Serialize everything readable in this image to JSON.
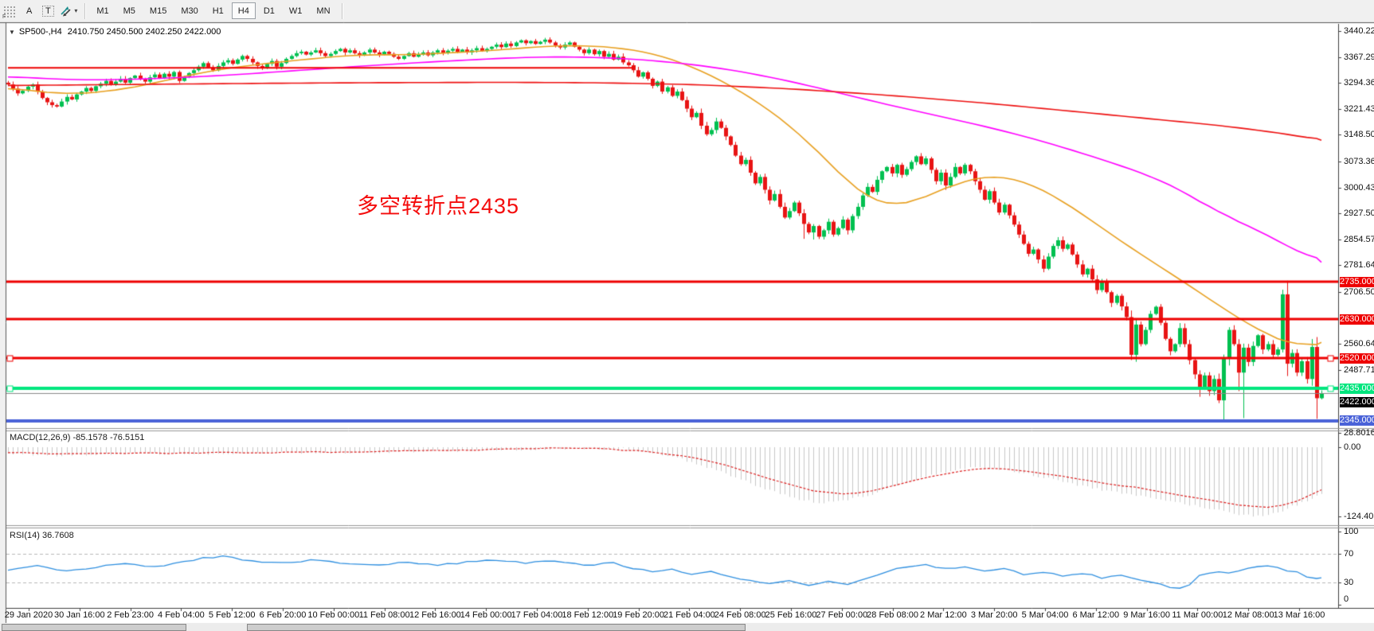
{
  "toolbar": {
    "handle_letter": "F",
    "font_tool_label": "A",
    "text_tool_label": "T",
    "dropdown_caret": "▾",
    "timeframes": [
      "M1",
      "M5",
      "M15",
      "M30",
      "H1",
      "H4",
      "D1",
      "W1",
      "MN"
    ],
    "active_timeframe": "H4"
  },
  "chart": {
    "collapse_arrow": "▼",
    "title_symbol": "SP500-,H4",
    "title_ohlc": "2410.750 2450.500 2402.250 2422.000",
    "annotation_text": "多空转折点2435",
    "annotation_color": "#f40b0b"
  },
  "macd": {
    "title": "MACD(12,26,9) -85.1578 -76.5151",
    "axis_labels": [
      {
        "text": "28.8016",
        "value": 28.8016
      },
      {
        "text": "0.00",
        "value": 0
      },
      {
        "text": "-124.4011",
        "value": -124.4011
      }
    ]
  },
  "rsi": {
    "title": "RSI(14) 36.7608",
    "axis_labels": [
      {
        "text": "100",
        "value": 100
      },
      {
        "text": "70",
        "value": 70
      },
      {
        "text": "30",
        "value": 30
      },
      {
        "text": "0",
        "value": 0
      }
    ]
  },
  "price_axis": {
    "ticks": [
      "3440.220",
      "3367.290",
      "3294.360",
      "3221.430",
      "3148.500",
      "3073.360",
      "3000.430",
      "2927.500",
      "2854.570",
      "2781.640",
      "2706.500",
      "2560.640",
      "2487.710"
    ],
    "line_labels": [
      {
        "text": "2735.000",
        "price": 2735,
        "bg": "#ee0000",
        "z": 5
      },
      {
        "text": "2630.000",
        "price": 2630,
        "bg": "#ee0000",
        "z": 5
      },
      {
        "text": "2520.000",
        "price": 2520,
        "bg": "#ee0000",
        "z": 5
      },
      {
        "text": "2435.000",
        "price": 2435,
        "bg": "#00e67e",
        "z": 7
      },
      {
        "text": "2422.000",
        "price": 2422,
        "bg": "#000000",
        "z": 6,
        "shift": 11
      },
      {
        "text": "2345.000",
        "price": 2345,
        "bg": "#4a62d8",
        "z": 5
      }
    ]
  },
  "time_axis": {
    "labels": [
      "29 Jan 2020",
      "30 Jan 16:00",
      "2 Feb 23:00",
      "4 Feb 04:00",
      "5 Feb 12:00",
      "6 Feb 20:00",
      "10 Feb 00:00",
      "11 Feb 08:00",
      "12 Feb 16:00",
      "14 Feb 00:00",
      "17 Feb 04:00",
      "18 Feb 12:00",
      "19 Feb 20:00",
      "21 Feb 04:00",
      "24 Feb 08:00",
      "25 Feb 16:00",
      "27 Feb 00:00",
      "28 Feb 08:00",
      "2 Mar 12:00",
      "3 Mar 20:00",
      "5 Mar 04:00",
      "6 Mar 12:00",
      "9 Mar 16:00",
      "11 Mar 00:00",
      "12 Mar 08:00",
      "13 Mar 16:00"
    ]
  },
  "chart_data": {
    "type": "candlestick",
    "symbol": "SP500-",
    "timeframe": "H4",
    "last_bar_ohlc": {
      "open": 2410.75,
      "high": 2450.5,
      "low": 2402.25,
      "close": 2422.0
    },
    "current_price": 2422.0,
    "price_axis_range": [
      2326,
      3460
    ],
    "colors": {
      "candle_up": "#00c050",
      "candle_down": "#e81414",
      "ma_short": "#e8a020",
      "ma_medium": "#ff00ff",
      "ma_long": "#ee1111",
      "macd_histogram": "#c8c8c8",
      "macd_signal": "#dd2020",
      "rsi_line": "#2e8fe0",
      "level_red": "#ee0000",
      "level_green": "#00e67e",
      "level_blue": "#4a62d8",
      "current_price_line": "#8a8a8a"
    },
    "horizontal_levels": [
      {
        "price": 2735,
        "color": "#ee0000",
        "width": 3,
        "markers": false
      },
      {
        "price": 2630,
        "color": "#ee0000",
        "width": 3,
        "markers": false
      },
      {
        "price": 2520,
        "color": "#ee0000",
        "width": 3,
        "markers": true
      },
      {
        "price": 2435,
        "color": "#00e67e",
        "width": 4,
        "markers": true
      },
      {
        "price": 2345,
        "color": "#4a62d8",
        "width": 4,
        "markers": false
      }
    ],
    "trendline": {
      "price": 3337,
      "from_bar": 0,
      "to_bar": 128,
      "color": "#ee0000",
      "width": 2
    },
    "closes": [
      3290,
      3278,
      3265,
      3272,
      3284,
      3290,
      3270,
      3252,
      3240,
      3232,
      3228,
      3242,
      3255,
      3248,
      3262,
      3270,
      3280,
      3272,
      3285,
      3292,
      3300,
      3290,
      3298,
      3306,
      3295,
      3308,
      3315,
      3305,
      3298,
      3310,
      3318,
      3308,
      3320,
      3312,
      3325,
      3300,
      3312,
      3322,
      3330,
      3340,
      3350,
      3338,
      3330,
      3342,
      3352,
      3358,
      3348,
      3360,
      3370,
      3362,
      3352,
      3342,
      3336,
      3348,
      3356,
      3340,
      3350,
      3362,
      3370,
      3378,
      3382,
      3374,
      3380,
      3386,
      3378,
      3370,
      3376,
      3384,
      3390,
      3380,
      3386,
      3378,
      3372,
      3380,
      3388,
      3380,
      3374,
      3382,
      3376,
      3368,
      3362,
      3370,
      3378,
      3368,
      3374,
      3380,
      3372,
      3380,
      3386,
      3378,
      3385,
      3390,
      3382,
      3388,
      3380,
      3386,
      3392,
      3384,
      3390,
      3396,
      3402,
      3395,
      3405,
      3398,
      3408,
      3414,
      3406,
      3412,
      3404,
      3410,
      3416,
      3408,
      3400,
      3394,
      3402,
      3408,
      3396,
      3388,
      3378,
      3388,
      3375,
      3384,
      3368,
      3376,
      3360,
      3368,
      3352,
      3344,
      3330,
      3312,
      3324,
      3306,
      3286,
      3298,
      3270,
      3282,
      3258,
      3270,
      3246,
      3222,
      3198,
      3210,
      3174,
      3150,
      3162,
      3186,
      3168,
      3144,
      3120,
      3090,
      3066,
      3078,
      3042,
      3012,
      3030,
      2994,
      2964,
      2982,
      2946,
      2916,
      2934,
      2958,
      2928,
      2898,
      2874,
      2892,
      2862,
      2880,
      2904,
      2868,
      2886,
      2910,
      2880,
      2920,
      2946,
      2978,
      3002,
      2988,
      3022,
      3046,
      3058,
      3040,
      3064,
      3036,
      3052,
      3072,
      3088,
      3066,
      3082,
      3050,
      3018,
      3042,
      3006,
      3030,
      3058,
      3040,
      3064,
      3046,
      3018,
      2994,
      2966,
      2990,
      2958,
      2930,
      2952,
      2922,
      2896,
      2868,
      2842,
      2814,
      2826,
      2798,
      2772,
      2806,
      2836,
      2852,
      2828,
      2840,
      2812,
      2784,
      2756,
      2772,
      2742,
      2712,
      2736,
      2706,
      2676,
      2696,
      2666,
      2636,
      2530,
      2615,
      2560,
      2600,
      2645,
      2665,
      2620,
      2575,
      2540,
      2560,
      2605,
      2560,
      2515,
      2475,
      2440,
      2472,
      2428,
      2462,
      2402,
      2520,
      2600,
      2560,
      2480,
      2550,
      2510,
      2555,
      2585,
      2545,
      2560,
      2530,
      2545,
      2700,
      2505,
      2535,
      2480,
      2512,
      2462,
      2552,
      2408,
      2422
    ],
    "high_overrides": {
      "110": 3421,
      "261": 2713
    },
    "low_overrides": {
      "163": 2856,
      "165": 2854,
      "244": 2412,
      "249": 2345,
      "252": 2428,
      "253": 2352,
      "268": 2350
    },
    "ma_short_anchors": [
      [
        0,
        3280
      ],
      [
        12,
        3262
      ],
      [
        22,
        3272
      ],
      [
        32,
        3300
      ],
      [
        42,
        3330
      ],
      [
        52,
        3348
      ],
      [
        62,
        3362
      ],
      [
        72,
        3374
      ],
      [
        82,
        3373
      ],
      [
        92,
        3380
      ],
      [
        102,
        3388
      ],
      [
        110,
        3398
      ],
      [
        118,
        3400
      ],
      [
        126,
        3392
      ],
      [
        132,
        3378
      ],
      [
        138,
        3352
      ],
      [
        144,
        3316
      ],
      [
        150,
        3272
      ],
      [
        156,
        3218
      ],
      [
        162,
        3154
      ],
      [
        168,
        3072
      ],
      [
        174,
        2990
      ],
      [
        179,
        2946
      ],
      [
        184,
        2952
      ],
      [
        190,
        2986
      ],
      [
        196,
        3022
      ],
      [
        202,
        3036
      ],
      [
        208,
        3020
      ],
      [
        214,
        2980
      ],
      [
        220,
        2926
      ],
      [
        226,
        2868
      ],
      [
        232,
        2812
      ],
      [
        238,
        2760
      ],
      [
        244,
        2706
      ],
      [
        250,
        2650
      ],
      [
        256,
        2600
      ],
      [
        261,
        2568
      ],
      [
        264,
        2552
      ],
      [
        267,
        2552
      ],
      [
        269,
        2565
      ]
    ],
    "ma_medium_anchors": [
      [
        0,
        3312
      ],
      [
        15,
        3302
      ],
      [
        30,
        3306
      ],
      [
        45,
        3316
      ],
      [
        60,
        3330
      ],
      [
        75,
        3344
      ],
      [
        90,
        3356
      ],
      [
        105,
        3366
      ],
      [
        115,
        3368
      ],
      [
        125,
        3364
      ],
      [
        135,
        3354
      ],
      [
        145,
        3338
      ],
      [
        155,
        3314
      ],
      [
        165,
        3284
      ],
      [
        175,
        3250
      ],
      [
        185,
        3218
      ],
      [
        195,
        3188
      ],
      [
        205,
        3156
      ],
      [
        215,
        3118
      ],
      [
        225,
        3075
      ],
      [
        235,
        3028
      ],
      [
        242,
        2980
      ],
      [
        248,
        2928
      ],
      [
        254,
        2895
      ],
      [
        260,
        2850
      ],
      [
        265,
        2815
      ],
      [
        269,
        2790
      ]
    ],
    "ma_long_anchors": [
      [
        0,
        3287
      ],
      [
        25,
        3290
      ],
      [
        50,
        3293
      ],
      [
        75,
        3295
      ],
      [
        100,
        3296
      ],
      [
        120,
        3295
      ],
      [
        140,
        3290
      ],
      [
        160,
        3278
      ],
      [
        180,
        3260
      ],
      [
        200,
        3238
      ],
      [
        220,
        3212
      ],
      [
        235,
        3192
      ],
      [
        248,
        3175
      ],
      [
        258,
        3158
      ],
      [
        264,
        3146
      ],
      [
        269,
        3133
      ]
    ],
    "macd": {
      "main_value": -85.1578,
      "signal_value": -76.5151,
      "axis_max": 28.8016,
      "axis_min": -124.4011,
      "histogram_anchors": [
        [
          0,
          -12
        ],
        [
          12,
          -15
        ],
        [
          25,
          -11
        ],
        [
          40,
          -13
        ],
        [
          55,
          -9
        ],
        [
          70,
          -11
        ],
        [
          85,
          -7
        ],
        [
          95,
          -6
        ],
        [
          105,
          -4
        ],
        [
          112,
          -2
        ],
        [
          120,
          -4
        ],
        [
          126,
          -3
        ],
        [
          132,
          -10
        ],
        [
          138,
          -22
        ],
        [
          144,
          -38
        ],
        [
          150,
          -58
        ],
        [
          156,
          -78
        ],
        [
          161,
          -92
        ],
        [
          166,
          -100
        ],
        [
          171,
          -96
        ],
        [
          177,
          -84
        ],
        [
          184,
          -62
        ],
        [
          191,
          -45
        ],
        [
          198,
          -36
        ],
        [
          205,
          -41
        ],
        [
          212,
          -54
        ],
        [
          219,
          -68
        ],
        [
          226,
          -80
        ],
        [
          233,
          -90
        ],
        [
          240,
          -100
        ],
        [
          246,
          -110
        ],
        [
          252,
          -120
        ],
        [
          256,
          -124
        ],
        [
          260,
          -117
        ],
        [
          264,
          -103
        ],
        [
          267,
          -92
        ],
        [
          269,
          -85
        ]
      ],
      "signal_anchors": [
        [
          0,
          -10
        ],
        [
          15,
          -12
        ],
        [
          30,
          -11
        ],
        [
          45,
          -10
        ],
        [
          60,
          -9
        ],
        [
          75,
          -8
        ],
        [
          90,
          -6
        ],
        [
          102,
          -4
        ],
        [
          112,
          -2
        ],
        [
          122,
          -3
        ],
        [
          130,
          -7
        ],
        [
          138,
          -15
        ],
        [
          146,
          -30
        ],
        [
          153,
          -48
        ],
        [
          159,
          -65
        ],
        [
          165,
          -78
        ],
        [
          170,
          -84
        ],
        [
          176,
          -80
        ],
        [
          183,
          -65
        ],
        [
          190,
          -50
        ],
        [
          197,
          -40
        ],
        [
          204,
          -38
        ],
        [
          211,
          -45
        ],
        [
          218,
          -55
        ],
        [
          225,
          -65
        ],
        [
          232,
          -74
        ],
        [
          239,
          -84
        ],
        [
          246,
          -94
        ],
        [
          252,
          -103
        ],
        [
          257,
          -108
        ],
        [
          261,
          -105
        ],
        [
          264,
          -96
        ],
        [
          267,
          -85
        ],
        [
          269,
          -76.5
        ]
      ]
    },
    "rsi": {
      "value": 36.7608,
      "overbought": 70,
      "oversold": 30,
      "range": [
        0,
        100
      ],
      "anchors": [
        [
          0,
          48
        ],
        [
          6,
          54
        ],
        [
          12,
          46
        ],
        [
          18,
          51
        ],
        [
          24,
          57
        ],
        [
          30,
          52
        ],
        [
          36,
          58
        ],
        [
          40,
          64
        ],
        [
          44,
          66
        ],
        [
          50,
          60
        ],
        [
          56,
          57
        ],
        [
          62,
          61
        ],
        [
          68,
          57
        ],
        [
          76,
          55
        ],
        [
          82,
          58
        ],
        [
          88,
          54
        ],
        [
          94,
          58
        ],
        [
          100,
          61
        ],
        [
          106,
          57
        ],
        [
          112,
          60
        ],
        [
          118,
          54
        ],
        [
          124,
          57
        ],
        [
          128,
          50
        ],
        [
          132,
          46
        ],
        [
          136,
          49
        ],
        [
          140,
          42
        ],
        [
          144,
          45
        ],
        [
          148,
          38
        ],
        [
          152,
          33
        ],
        [
          156,
          29
        ],
        [
          160,
          33
        ],
        [
          164,
          27
        ],
        [
          168,
          31
        ],
        [
          172,
          28
        ],
        [
          176,
          36
        ],
        [
          180,
          46
        ],
        [
          184,
          52
        ],
        [
          188,
          55
        ],
        [
          192,
          49
        ],
        [
          196,
          52
        ],
        [
          200,
          45
        ],
        [
          204,
          49
        ],
        [
          208,
          42
        ],
        [
          212,
          45
        ],
        [
          216,
          40
        ],
        [
          220,
          43
        ],
        [
          224,
          37
        ],
        [
          228,
          40
        ],
        [
          232,
          33
        ],
        [
          236,
          28
        ],
        [
          238,
          24
        ],
        [
          241,
          22
        ],
        [
          244,
          40
        ],
        [
          247,
          46
        ],
        [
          250,
          44
        ],
        [
          253,
          48
        ],
        [
          256,
          53
        ],
        [
          259,
          52
        ],
        [
          262,
          46
        ],
        [
          264,
          44
        ],
        [
          266,
          38
        ],
        [
          267,
          34
        ],
        [
          268,
          36
        ],
        [
          269,
          36.8
        ]
      ]
    }
  }
}
